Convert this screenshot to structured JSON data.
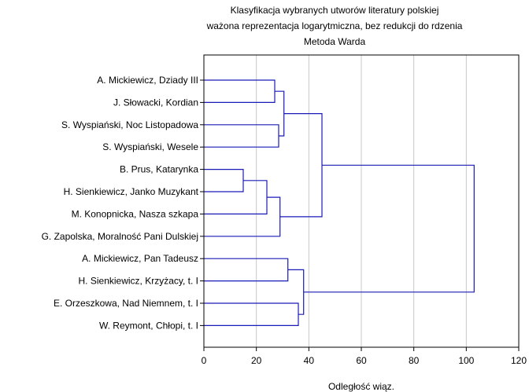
{
  "chart_data": {
    "type": "dendrogram",
    "title_lines": [
      "Klasyfikacja wybranych utworów literatury polskiej",
      "ważona reprezentacja logarytmiczna, bez redukcji do rdzenia",
      "Metoda Warda"
    ],
    "xlabel": "Odległość wiąz.",
    "xlim": [
      0,
      120
    ],
    "xticks": [
      "0",
      "20",
      "40",
      "60",
      "80",
      "100",
      "120"
    ],
    "grid": true,
    "leaves": [
      "A. Mickiewicz, Dziady III",
      "J. Słowacki, Kordian",
      "S. Wyspiański, Noc Listopadowa",
      "S. Wyspiański, Wesele",
      "B. Prus, Katarynka",
      "H. Sienkiewicz, Janko Muzykant",
      "M. Konopnicka, Nasza szkapa",
      "G. Zapolska, Moralność Pani Dulskiej",
      "A. Mickiewicz, Pan Tadeusz",
      "H. Sienkiewicz, Krzyżacy, t. I",
      "E. Orzeszkowa, Nad Niemnem, t. I",
      "W. Reymont, Chłopi, t. I"
    ],
    "merges": [
      {
        "a": 4,
        "b": 5,
        "distance": 15
      },
      {
        "a": 0,
        "b": 1,
        "distance": 27
      },
      {
        "a": 12,
        "b": 6,
        "distance": 24
      },
      {
        "a": 2,
        "b": 3,
        "distance": 28.5
      },
      {
        "a": 14,
        "b": 7,
        "distance": 29
      },
      {
        "a": 13,
        "b": 15,
        "distance": 30.5
      },
      {
        "a": 8,
        "b": 9,
        "distance": 32
      },
      {
        "a": 10,
        "b": 11,
        "distance": 36
      },
      {
        "a": 18,
        "b": 19,
        "distance": 38
      },
      {
        "a": 17,
        "b": 16,
        "distance": 45
      },
      {
        "a": 21,
        "b": 20,
        "distance": 103
      }
    ]
  }
}
